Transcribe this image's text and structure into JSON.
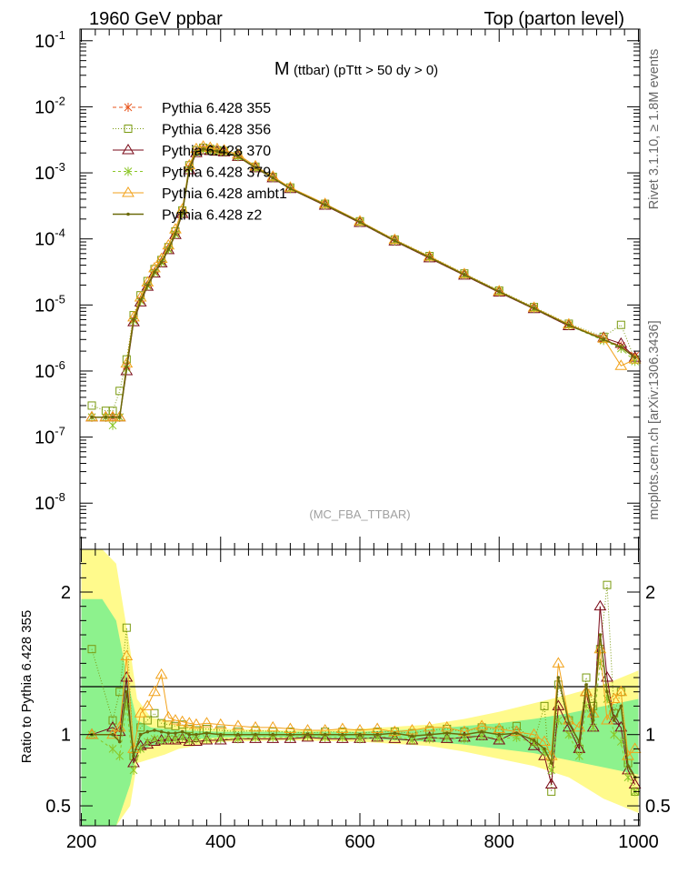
{
  "header": {
    "left": "1960 GeV ppbar",
    "right": "Top (parton level)"
  },
  "side_labels": {
    "rivet": "Rivet 3.1.10, ≥ 1.8M events",
    "mcplots": "mcplots.cern.ch [arXiv:1306.3436]"
  },
  "watermark": "(MC_FBA_TTBAR)",
  "colors": {
    "s355": "#e8561d",
    "s356": "#7a9a10",
    "s370": "#7a0a18",
    "s379": "#8cc628",
    "ambt1": "#f2a21b",
    "z2": "#6b6a0a",
    "band_yellow": "#fffa8c",
    "band_green": "#8df28d"
  },
  "chart_data": [
    {
      "type": "line",
      "title": "M (ttbar) (pTtt > 50 dy > 0)",
      "title_main": "M",
      "title_sub": "(ttbar) (pTtt > 50 dy > 0)",
      "xlabel": "",
      "ylabel": "",
      "xlim": [
        198,
        1002
      ],
      "ylim": [
        2e-09,
        0.15
      ],
      "yscale": "log",
      "ytick_labels": [
        {
          "value": 1e-08,
          "exp": "-8"
        },
        {
          "value": 1e-07,
          "exp": "-7"
        },
        {
          "value": 1e-06,
          "exp": "-6"
        },
        {
          "value": 1e-05,
          "exp": "-5"
        },
        {
          "value": 0.0001,
          "exp": "-4"
        },
        {
          "value": 0.001,
          "exp": "-3"
        },
        {
          "value": 0.01,
          "exp": "-2"
        },
        {
          "value": 0.1,
          "exp": "-1"
        }
      ],
      "legend_position": "top-left",
      "grid": false,
      "x": [
        215,
        235,
        245,
        255,
        265,
        275,
        285,
        295,
        305,
        315,
        325,
        335,
        345,
        355,
        365,
        375,
        385,
        395,
        405,
        425,
        450,
        475,
        500,
        550,
        600,
        650,
        700,
        750,
        800,
        850,
        900,
        950,
        975,
        995
      ],
      "series": [
        {
          "name": "Pythia 6.428 355",
          "values": [
            2e-07,
            2e-07,
            2e-07,
            2e-07,
            1.2e-06,
            6e-06,
            1.2e-05,
            2e-05,
            3.2e-05,
            4.5e-05,
            7e-05,
            0.00012,
            0.00025,
            0.0012,
            0.0021,
            0.0023,
            0.0022,
            0.00215,
            0.0021,
            0.0018,
            0.0012,
            0.00085,
            0.00058,
            0.00033,
            0.00018,
            9.5e-05,
            5.3e-05,
            2.9e-05,
            1.6e-05,
            9e-06,
            5e-06,
            3e-06,
            2.4e-06,
            1.7e-06
          ]
        },
        {
          "name": "Pythia 6.428 356",
          "values": [
            3e-07,
            2.5e-07,
            2.5e-07,
            5e-07,
            1.5e-06,
            7e-06,
            1.4e-05,
            2.3e-05,
            3.5e-05,
            4.8e-05,
            7.5e-05,
            0.00013,
            0.00027,
            0.0013,
            0.0022,
            0.0024,
            0.0023,
            0.0022,
            0.00215,
            0.00185,
            0.00124,
            0.00087,
            0.0006,
            0.00034,
            0.000185,
            9.8e-05,
            5.5e-05,
            3e-05,
            1.65e-05,
            9.3e-06,
            5.2e-06,
            3.3e-06,
            5e-06,
            1.5e-06
          ]
        },
        {
          "name": "Pythia 6.428 370",
          "values": [
            2e-07,
            2e-07,
            2e-07,
            2e-07,
            1e-06,
            5.5e-06,
            1.1e-05,
            1.9e-05,
            3e-05,
            4.3e-05,
            6.8e-05,
            0.000115,
            0.00024,
            0.0011,
            0.002,
            0.0022,
            0.00215,
            0.0021,
            0.00205,
            0.00175,
            0.00118,
            0.00083,
            0.00057,
            0.00032,
            0.000175,
            9.2e-05,
            5.1e-05,
            2.8e-05,
            1.55e-05,
            8.7e-06,
            4.8e-06,
            3.2e-06,
            2.6e-06,
            1.6e-06
          ]
        },
        {
          "name": "Pythia 6.428 379",
          "values": [
            2e-07,
            2e-07,
            1.5e-07,
            2e-07,
            1.1e-06,
            5.8e-06,
            1.15e-05,
            1.95e-05,
            3.1e-05,
            4.4e-05,
            6.9e-05,
            0.000118,
            0.000245,
            0.00115,
            0.00205,
            0.00225,
            0.00218,
            0.00212,
            0.00206,
            0.00176,
            0.00119,
            0.00084,
            0.000575,
            0.000325,
            0.000178,
            9.3e-05,
            5.2e-05,
            2.85e-05,
            1.58e-05,
            8.8e-06,
            4.9e-06,
            2.9e-06,
            2.2e-06,
            1.4e-06
          ]
        },
        {
          "name": "Pythia 6.428 ambt1",
          "values": [
            2e-07,
            2e-07,
            2e-07,
            2e-07,
            1.3e-06,
            6.5e-06,
            1.3e-05,
            2.2e-05,
            3.6e-05,
            5e-05,
            8e-05,
            0.00014,
            0.00028,
            0.0013,
            0.0023,
            0.0025,
            0.0024,
            0.0023,
            0.0022,
            0.0019,
            0.00126,
            0.00088,
            0.0006,
            0.00034,
            0.000185,
            9.7e-05,
            5.4e-05,
            2.95e-05,
            1.62e-05,
            9.1e-06,
            5.1e-06,
            3.1e-06,
            1.2e-06,
            1.5e-06
          ]
        },
        {
          "name": "Pythia 6.428 z2",
          "values": [
            2e-07,
            2e-07,
            2e-07,
            2e-07,
            1.15e-06,
            5.9e-06,
            1.18e-05,
            1.98e-05,
            3.15e-05,
            4.45e-05,
            7e-05,
            0.000119,
            0.000248,
            0.00118,
            0.00208,
            0.00228,
            0.0022,
            0.00213,
            0.00207,
            0.00178,
            0.0012,
            0.00084,
            0.000578,
            0.000328,
            0.00018,
            9.4e-05,
            5.25e-05,
            2.88e-05,
            1.59e-05,
            8.9e-06,
            4.95e-06,
            3e-06,
            2.3e-06,
            1.6e-06
          ]
        }
      ]
    },
    {
      "type": "line",
      "title": "",
      "xlabel": "",
      "ylabel": "Ratio to Pythia 6.428 355",
      "xlim": [
        198,
        1002
      ],
      "ylim": [
        0.36,
        2.3
      ],
      "ytick_labels": [
        "0.5",
        "1",
        "2"
      ],
      "xtick_labels": [
        "200",
        "400",
        "600",
        "800",
        "1000"
      ],
      "band_yellow": {
        "x": [
          200,
          210,
          230,
          250,
          270,
          280,
          300,
          320,
          340,
          400,
          500,
          600,
          700,
          750,
          800,
          850,
          900,
          950,
          1000
        ],
        "lo": [
          0.3,
          0.3,
          0.3,
          0.3,
          0.5,
          0.8,
          0.83,
          0.86,
          0.9,
          0.95,
          0.96,
          0.95,
          0.92,
          0.88,
          0.83,
          0.78,
          0.7,
          0.55,
          0.45
        ],
        "hi": [
          2.3,
          2.3,
          2.3,
          2.2,
          1.6,
          1.25,
          1.12,
          1.1,
          1.06,
          1.04,
          1.03,
          1.04,
          1.07,
          1.11,
          1.16,
          1.22,
          1.28,
          1.35,
          1.45
        ]
      },
      "band_green": {
        "x": [
          200,
          210,
          230,
          250,
          270,
          280,
          300,
          320,
          340,
          400,
          500,
          600,
          700,
          750,
          800,
          850,
          900,
          950,
          1000
        ],
        "lo": [
          0.3,
          0.3,
          0.3,
          0.3,
          0.65,
          0.88,
          0.92,
          0.94,
          0.96,
          0.98,
          0.98,
          0.97,
          0.95,
          0.93,
          0.9,
          0.87,
          0.82,
          0.77,
          0.72
        ],
        "hi": [
          1.95,
          1.95,
          1.95,
          1.8,
          1.3,
          1.1,
          1.05,
          1.04,
          1.03,
          1.02,
          1.02,
          1.02,
          1.04,
          1.06,
          1.08,
          1.11,
          1.15,
          1.2,
          1.25
        ]
      },
      "x": [
        215,
        245,
        255,
        265,
        275,
        285,
        295,
        305,
        315,
        325,
        335,
        345,
        355,
        365,
        380,
        400,
        425,
        450,
        475,
        500,
        525,
        550,
        575,
        600,
        625,
        650,
        675,
        700,
        725,
        750,
        775,
        800,
        825,
        850,
        865,
        875,
        885,
        900,
        915,
        925,
        935,
        945,
        955,
        965,
        975,
        985,
        995
      ],
      "series": [
        {
          "name": "Pythia 6.428 356",
          "values": [
            1.6,
            1.1,
            1.3,
            1.75,
            0.85,
            1.05,
            1.1,
            1.15,
            1.08,
            1.07,
            1.06,
            1.07,
            1.04,
            1.03,
            1.04,
            1.03,
            1.02,
            1.03,
            1.02,
            1.02,
            1.01,
            1.02,
            1.02,
            1.01,
            1.02,
            1.02,
            1.01,
            1.03,
            1.04,
            1.02,
            1.05,
            1.03,
            1.06,
            0.95,
            1.2,
            0.6,
            1.35,
            1.1,
            0.9,
            1.4,
            1.2,
            1.6,
            2.05,
            1.15,
            1.3,
            0.8,
            0.6
          ]
        },
        {
          "name": "Pythia 6.428 370",
          "values": [
            1.0,
            1.05,
            1.02,
            1.4,
            0.8,
            0.92,
            0.93,
            0.95,
            0.96,
            0.96,
            0.96,
            0.97,
            0.95,
            0.95,
            0.96,
            0.96,
            0.97,
            0.97,
            0.97,
            0.97,
            0.98,
            0.97,
            0.97,
            0.97,
            0.98,
            0.97,
            0.96,
            0.98,
            0.97,
            0.98,
            0.99,
            0.96,
            1.02,
            0.92,
            0.85,
            0.65,
            1.2,
            1.05,
            0.9,
            1.3,
            1.05,
            1.9,
            1.4,
            1.1,
            1.05,
            0.75,
            0.65
          ]
        },
        {
          "name": "Pythia 6.428 379",
          "values": [
            1.0,
            0.9,
            0.85,
            1.2,
            0.75,
            0.9,
            0.95,
            0.97,
            0.96,
            0.97,
            0.97,
            0.98,
            0.96,
            0.97,
            0.97,
            0.97,
            0.97,
            0.98,
            0.98,
            0.98,
            0.99,
            0.98,
            0.98,
            0.97,
            0.98,
            0.99,
            0.96,
            0.97,
            0.98,
            0.97,
            0.99,
            0.97,
            0.98,
            0.94,
            0.88,
            0.75,
            1.1,
            1.0,
            0.85,
            1.2,
            1.05,
            1.5,
            1.25,
            1.0,
            0.95,
            0.7,
            0.6
          ]
        },
        {
          "name": "Pythia 6.428 ambt1",
          "values": [
            1.0,
            1.0,
            1.05,
            1.55,
            0.9,
            1.15,
            1.2,
            1.3,
            1.42,
            1.12,
            1.1,
            1.09,
            1.08,
            1.07,
            1.08,
            1.07,
            1.06,
            1.05,
            1.05,
            1.04,
            1.03,
            1.03,
            1.04,
            1.03,
            1.04,
            1.02,
            1.03,
            1.05,
            1.05,
            1.02,
            1.06,
            1.04,
            1.02,
            1.0,
            0.95,
            0.85,
            1.5,
            1.1,
            1.05,
            1.3,
            1.15,
            1.6,
            1.1,
            1.25,
            1.3,
            0.85,
            0.9
          ]
        },
        {
          "name": "Pythia 6.428 z2",
          "values": [
            1.0,
            1.0,
            0.95,
            1.3,
            0.85,
            1.0,
            1.02,
            1.03,
            1.02,
            1.01,
            1.01,
            1.02,
            1.0,
            1.0,
            1.01,
            1.0,
            1.0,
            1.0,
            1.0,
            1.0,
            1.0,
            1.0,
            1.0,
            1.0,
            1.0,
            1.01,
            0.99,
            1.0,
            1.01,
            1.0,
            1.02,
            1.0,
            1.01,
            0.96,
            0.9,
            0.8,
            1.4,
            1.08,
            0.95,
            1.35,
            1.1,
            1.7,
            1.3,
            1.1,
            1.2,
            0.78,
            0.7
          ]
        }
      ]
    }
  ]
}
